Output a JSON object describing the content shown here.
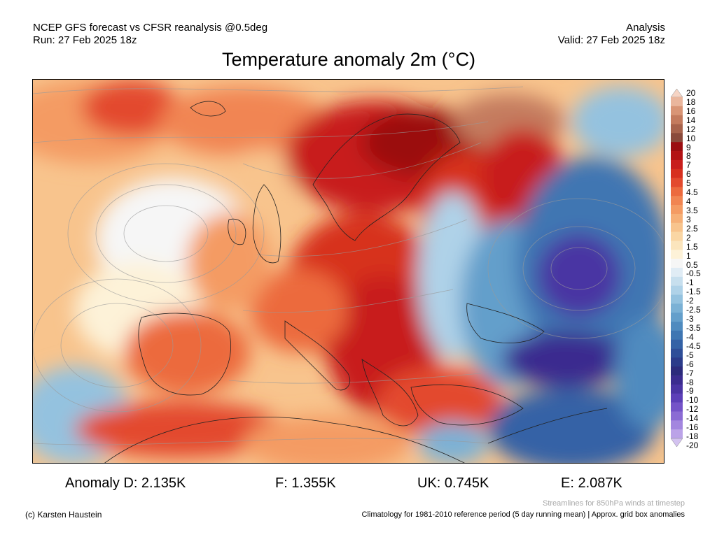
{
  "header": {
    "left_line1": "NCEP GFS forecast vs CFSR reanalysis @0.5deg",
    "left_line2": "Run: 27 Feb 2025 18z",
    "right_line1": "Analysis",
    "right_line2": "Valid: 27 Feb 2025 18z"
  },
  "title": "Temperature anomaly 2m (°C)",
  "colorbar": {
    "labels": [
      "20",
      "18",
      "16",
      "14",
      "12",
      "10",
      "9",
      "8",
      "7",
      "6",
      "5",
      "4.5",
      "4",
      "3.5",
      "3",
      "2.5",
      "2",
      "1.5",
      "1",
      "0.5",
      "-0.5",
      "-1",
      "-1.5",
      "-2",
      "-2.5",
      "-3",
      "-3.5",
      "-4",
      "-4.5",
      "-5",
      "-6",
      "-7",
      "-8",
      "-9",
      "-10",
      "-12",
      "-14",
      "-16",
      "-18",
      "-20"
    ],
    "colors": [
      "#f6d4c4",
      "#eab69d",
      "#d99576",
      "#c47b5e",
      "#a8634c",
      "#8a4a3b",
      "#9b0d10",
      "#b31214",
      "#c81e1c",
      "#d7301f",
      "#e34a2e",
      "#ec6a3e",
      "#f18552",
      "#f49b63",
      "#f6b077",
      "#f8c48d",
      "#fad6a4",
      "#fbe5bd",
      "#fdf2d8",
      "#f6f6f6",
      "#e0ecf5",
      "#c7dfee",
      "#afd2e8",
      "#94c2df",
      "#7bb1d5",
      "#649fcb",
      "#4f8bbf",
      "#3f76b2",
      "#3462a6",
      "#2e4e98",
      "#2b3b8a",
      "#2c2b7c",
      "#3b2c8f",
      "#4a34a3",
      "#5c3fb8",
      "#7453c8",
      "#8b6bd4",
      "#a386df",
      "#bba3e8",
      "#d3c2f0"
    ]
  },
  "stats": [
    {
      "label": "Anomaly D: 2.135K"
    },
    {
      "label": "F: 1.355K"
    },
    {
      "label": "UK: 0.745K"
    },
    {
      "label": "E: 2.087K"
    }
  ],
  "notes": {
    "streamlines": "Streamlines for 850hPa winds at timestep",
    "climatology": "Climatology for 1981-2010 reference period (5 day running mean) | Approx. grid box anomalies",
    "copyright": "(c) Karsten Haustein"
  }
}
